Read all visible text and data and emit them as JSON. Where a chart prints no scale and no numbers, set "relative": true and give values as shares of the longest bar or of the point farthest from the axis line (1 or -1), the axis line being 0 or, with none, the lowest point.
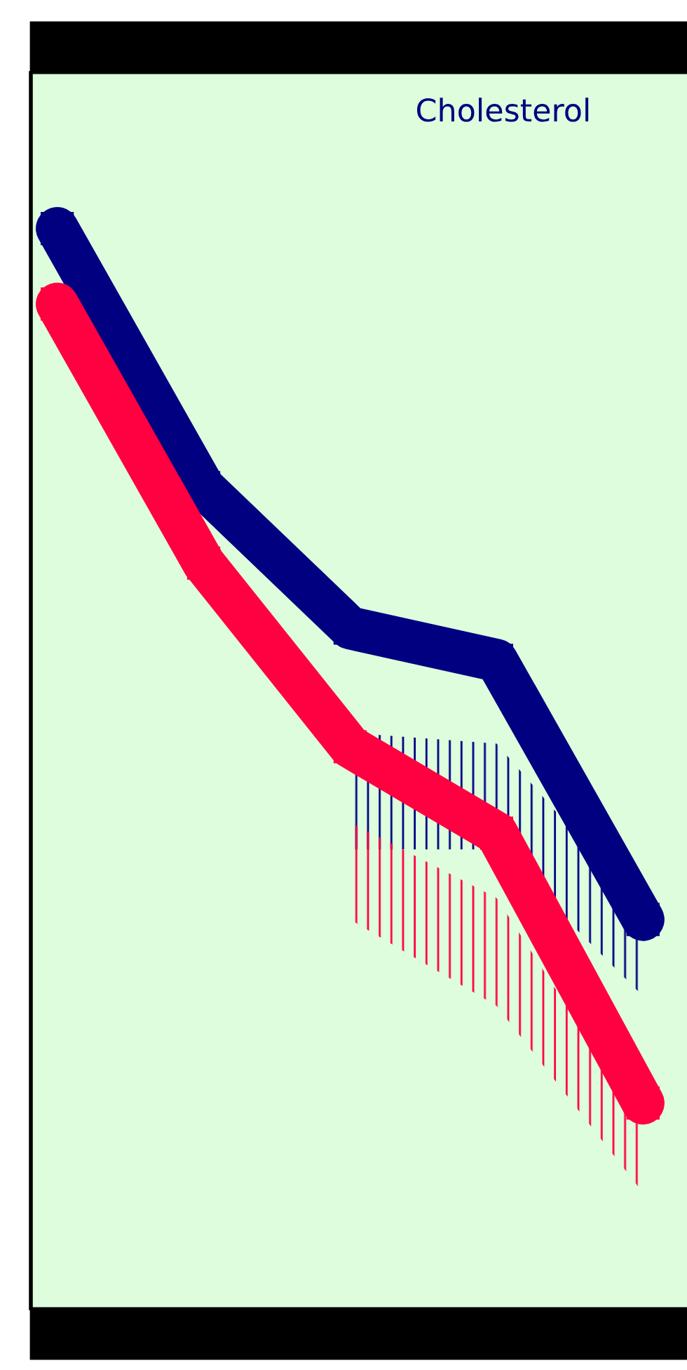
{
  "chart_data": {
    "type": "line",
    "title": "Cholesterol",
    "relative": true,
    "categories": [
      null,
      null,
      null,
      null,
      null
    ],
    "marker": "square",
    "line_style": "solid",
    "grid": false,
    "legend": false,
    "series": [
      {
        "color": "#000080",
        "values": [
          1,
          0.76,
          0.63,
          0.6,
          0.36
        ],
        "lower": [
          null,
          null,
          0.425,
          0.425,
          0.289
        ],
        "upper": [
          null,
          null,
          0.533,
          0.523,
          0.367
        ]
      },
      {
        "color": "#ff0040",
        "values": [
          0.93,
          0.69,
          0.52,
          0.44,
          0.19
        ],
        "lower": [
          null,
          null,
          0.36,
          0.28,
          0.107
        ],
        "upper": [
          null,
          null,
          0.45,
          0.38,
          0.17
        ]
      }
    ]
  }
}
